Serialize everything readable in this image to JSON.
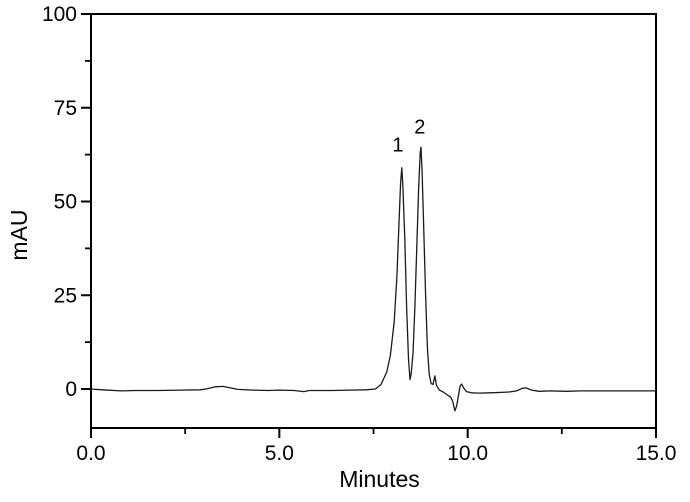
{
  "figure": {
    "background": "#ffffff",
    "axis_color": "#000000",
    "trace_color": "#1a1a1a"
  },
  "chart_data": {
    "type": "line",
    "title": "",
    "xlabel": "Minutes",
    "ylabel": "mAU",
    "xlim": [
      0,
      15
    ],
    "ylim": [
      -10.4,
      100
    ],
    "grid": false,
    "legend": "none",
    "x_major_ticks": [
      {
        "value": 0,
        "label": "0.0"
      },
      {
        "value": 5,
        "label": "5.0"
      },
      {
        "value": 10,
        "label": "10.0"
      },
      {
        "value": 15,
        "label": "15.0"
      }
    ],
    "x_minor_ticks": [
      2.5,
      7.5,
      12.5
    ],
    "y_major_ticks": [
      {
        "value": 0,
        "label": "0"
      },
      {
        "value": 25,
        "label": "25"
      },
      {
        "value": 50,
        "label": "50"
      },
      {
        "value": 75,
        "label": "75"
      },
      {
        "value": 100,
        "label": "100"
      }
    ],
    "y_minor_ticks": [
      12.5,
      37.5,
      62.5,
      87.5
    ],
    "peaks": [
      {
        "label": "1",
        "retention_time_min": 8.25,
        "height_mau": 59
      },
      {
        "label": "2",
        "retention_time_min": 8.76,
        "height_mau": 64.5
      }
    ],
    "annotations": [
      {
        "text": "1",
        "x": 8.15,
        "y": 63.4
      },
      {
        "text": "2",
        "x": 8.73,
        "y": 68.2
      }
    ],
    "series": [
      {
        "name": "chromatogram-trace",
        "points": [
          [
            0.0,
            0.0
          ],
          [
            0.3,
            -0.2
          ],
          [
            0.8,
            -0.5
          ],
          [
            1.2,
            -0.4
          ],
          [
            1.8,
            -0.4
          ],
          [
            2.4,
            -0.3
          ],
          [
            2.9,
            -0.2
          ],
          [
            3.1,
            0.1
          ],
          [
            3.3,
            0.6
          ],
          [
            3.5,
            0.7
          ],
          [
            3.7,
            0.3
          ],
          [
            3.9,
            -0.1
          ],
          [
            4.3,
            -0.3
          ],
          [
            4.7,
            -0.4
          ],
          [
            5.0,
            -0.3
          ],
          [
            5.4,
            -0.4
          ],
          [
            5.65,
            -0.7
          ],
          [
            5.8,
            -0.4
          ],
          [
            6.4,
            -0.4
          ],
          [
            6.9,
            -0.3
          ],
          [
            7.3,
            -0.2
          ],
          [
            7.55,
            0.0
          ],
          [
            7.7,
            1.2
          ],
          [
            7.85,
            4.5
          ],
          [
            7.95,
            9.0
          ],
          [
            8.05,
            18.0
          ],
          [
            8.12,
            30.0
          ],
          [
            8.18,
            45.0
          ],
          [
            8.22,
            55.0
          ],
          [
            8.25,
            59.0
          ],
          [
            8.28,
            54.0
          ],
          [
            8.33,
            40.0
          ],
          [
            8.38,
            22.0
          ],
          [
            8.43,
            8.0
          ],
          [
            8.47,
            2.5
          ],
          [
            8.5,
            4.0
          ],
          [
            8.55,
            10.0
          ],
          [
            8.6,
            22.0
          ],
          [
            8.65,
            38.0
          ],
          [
            8.7,
            54.0
          ],
          [
            8.74,
            63.0
          ],
          [
            8.76,
            64.5
          ],
          [
            8.79,
            58.0
          ],
          [
            8.83,
            44.0
          ],
          [
            8.88,
            26.0
          ],
          [
            8.93,
            11.0
          ],
          [
            8.98,
            4.0
          ],
          [
            9.03,
            1.5
          ],
          [
            9.08,
            1.2
          ],
          [
            9.13,
            3.5
          ],
          [
            9.17,
            1.0
          ],
          [
            9.25,
            -0.3
          ],
          [
            9.35,
            -0.8
          ],
          [
            9.45,
            -1.5
          ],
          [
            9.55,
            -2.2
          ],
          [
            9.6,
            -3.2
          ],
          [
            9.66,
            -5.8
          ],
          [
            9.71,
            -4.5
          ],
          [
            9.76,
            -1.5
          ],
          [
            9.8,
            0.8
          ],
          [
            9.84,
            1.3
          ],
          [
            9.9,
            0.2
          ],
          [
            9.97,
            -0.7
          ],
          [
            10.1,
            -1.0
          ],
          [
            10.3,
            -1.1
          ],
          [
            10.6,
            -1.0
          ],
          [
            10.9,
            -0.9
          ],
          [
            11.1,
            -0.8
          ],
          [
            11.3,
            -0.5
          ],
          [
            11.45,
            0.2
          ],
          [
            11.55,
            0.3
          ],
          [
            11.7,
            -0.3
          ],
          [
            11.9,
            -0.6
          ],
          [
            12.2,
            -0.5
          ],
          [
            12.6,
            -0.6
          ],
          [
            13.0,
            -0.5
          ],
          [
            13.5,
            -0.5
          ],
          [
            14.0,
            -0.5
          ],
          [
            14.5,
            -0.5
          ],
          [
            14.97,
            -0.5
          ]
        ]
      }
    ]
  }
}
